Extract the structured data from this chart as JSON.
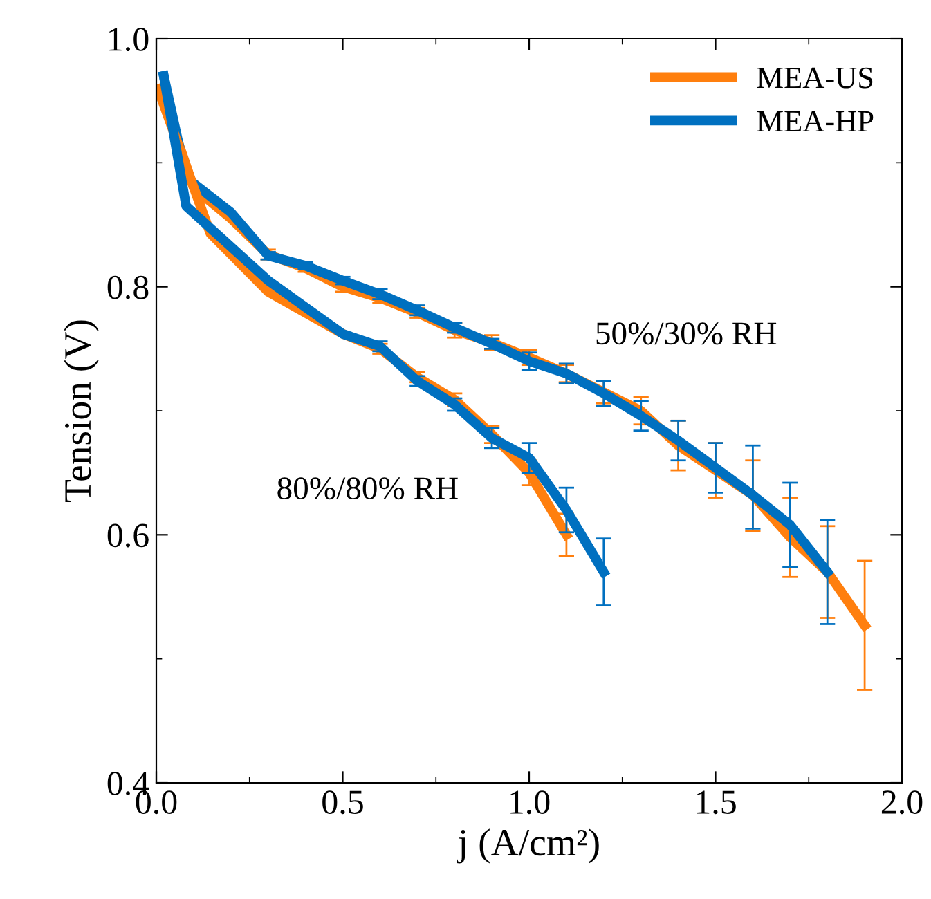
{
  "chart_data": {
    "type": "line",
    "xlabel": "j (A/cm²)",
    "ylabel": "Tension (V)",
    "xlim": [
      0,
      2.0
    ],
    "ylim": [
      0.4,
      1.0
    ],
    "xticks": [
      {
        "value": 0,
        "label": "0.0"
      },
      0.5,
      {
        "value": 1,
        "label": "1.0"
      },
      1.5,
      {
        "value": 2,
        "label": "2.0"
      }
    ],
    "yticks": [
      0.4,
      0.6,
      0.8,
      {
        "value": 1,
        "label": "1.0"
      }
    ],
    "grid": false,
    "legend": "top right",
    "line_style": "solid",
    "marker": "none",
    "annotations": [
      "50%/30% RH",
      "80%/80% RH"
    ],
    "series": [
      {
        "name": "MEA-US",
        "color": "#ff7f0e",
        "x": [
          0.01,
          0.1,
          0.2,
          0.3,
          0.4,
          0.5,
          0.6,
          0.7,
          0.8,
          0.9,
          1.0,
          1.1,
          1.2,
          1.3,
          1.4,
          1.5,
          1.6,
          1.7,
          1.8,
          1.9
        ],
        "values": [
          0.96,
          0.88,
          0.855,
          0.826,
          0.815,
          0.8,
          0.791,
          0.779,
          0.765,
          0.755,
          0.743,
          0.73,
          0.715,
          0.7,
          0.672,
          0.652,
          0.632,
          0.598,
          0.57,
          0.527
        ],
        "errors": [
          null,
          null,
          null,
          0.004,
          0.003,
          0.004,
          0.004,
          0.004,
          0.006,
          0.006,
          0.006,
          0.007,
          0.009,
          0.011,
          0.02,
          0.022,
          [
            0.603,
            0.66
          ],
          0.032,
          0.037,
          0.052
        ]
      },
      {
        "name": "MEA-HP",
        "color": "#0070c0",
        "x": [
          0.02,
          0.08,
          0.2,
          0.3,
          0.4,
          0.5,
          0.6,
          0.7,
          0.8,
          0.9,
          1.0,
          1.1,
          1.2,
          1.3,
          1.4,
          1.5,
          1.6,
          1.7,
          1.8
        ],
        "values": [
          0.97,
          0.888,
          0.86,
          0.825,
          0.817,
          0.805,
          0.794,
          0.781,
          0.767,
          0.754,
          0.74,
          0.73,
          0.714,
          0.696,
          0.676,
          0.654,
          0.632,
          0.608,
          0.57
        ],
        "errors": [
          null,
          null,
          null,
          0.003,
          0.003,
          0.003,
          0.004,
          0.004,
          0.004,
          0.004,
          0.007,
          0.008,
          0.01,
          0.012,
          0.016,
          0.02,
          [
            0.605,
            0.672
          ],
          0.034,
          0.042
        ]
      },
      {
        "color": "#ff7f0e",
        "x": [
          0.01,
          0.145,
          0.3,
          0.5,
          0.6,
          0.7,
          0.8,
          0.9,
          1.0,
          1.1
        ],
        "values": [
          0.955,
          0.843,
          0.796,
          0.762,
          0.75,
          0.727,
          0.709,
          0.681,
          0.65,
          0.6
        ],
        "errors": [
          null,
          null,
          null,
          null,
          0.004,
          0.004,
          0.005,
          0.007,
          0.01,
          0.017
        ]
      },
      {
        "color": "#0070c0",
        "x": [
          0.02,
          0.08,
          0.3,
          0.5,
          0.6,
          0.7,
          0.8,
          0.9,
          1.0,
          1.1,
          1.2
        ],
        "values": [
          0.97,
          0.865,
          0.805,
          0.762,
          0.752,
          0.724,
          0.705,
          0.678,
          0.662,
          0.62,
          0.57
        ],
        "errors": [
          null,
          null,
          null,
          null,
          0.004,
          0.004,
          0.005,
          0.008,
          0.012,
          0.018,
          0.027
        ]
      }
    ]
  }
}
